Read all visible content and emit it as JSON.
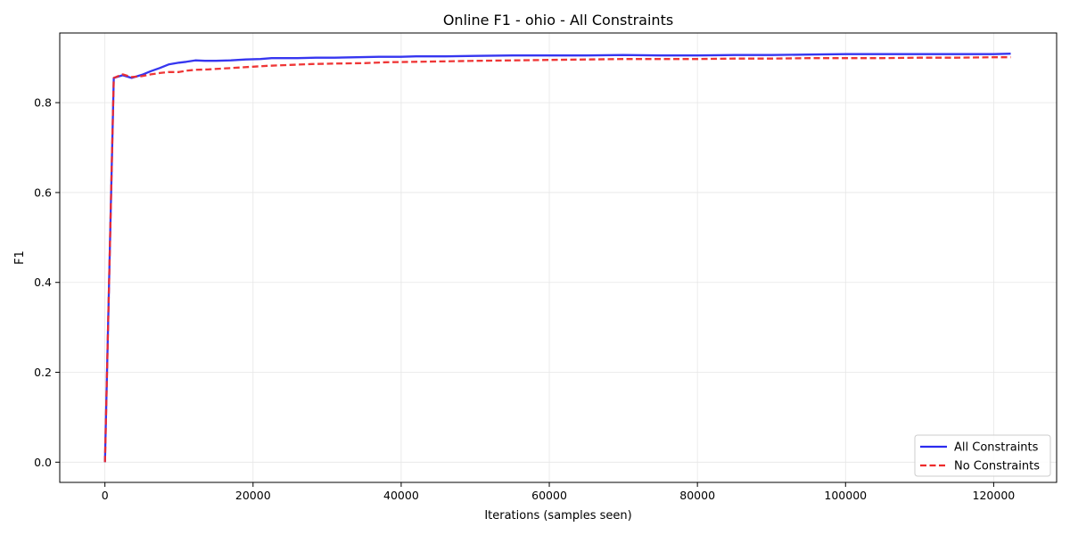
{
  "chart_data": {
    "type": "line",
    "title": "Online F1 - ohio - All Constraints",
    "xlabel": "Iterations (samples seen)",
    "ylabel": "F1",
    "xlim": [
      -6100,
      128500
    ],
    "ylim": [
      -0.045,
      0.955
    ],
    "xticks": [
      0,
      20000,
      40000,
      60000,
      80000,
      100000,
      120000
    ],
    "yticks": [
      0.0,
      0.2,
      0.4,
      0.6,
      0.8
    ],
    "xtick_labels": [
      "0",
      "20000",
      "40000",
      "60000",
      "80000",
      "100000",
      "120000"
    ],
    "ytick_labels": [
      "0.0",
      "0.2",
      "0.4",
      "0.6",
      "0.8"
    ],
    "grid": true,
    "legend_position": "bottom-right",
    "series": [
      {
        "name": "All Constraints",
        "color": "#2b2bef",
        "style": "solid",
        "x": [
          0,
          1200,
          2400,
          3600,
          5000,
          6200,
          7400,
          8600,
          10000,
          11000,
          12200,
          13500,
          15000,
          17000,
          19000,
          21000,
          22500,
          24000,
          26000,
          28500,
          31000,
          34000,
          37000,
          40000,
          42000,
          46000,
          50000,
          55000,
          60000,
          65000,
          70000,
          75000,
          80000,
          85000,
          90000,
          95000,
          100000,
          105000,
          110000,
          115000,
          120000,
          122300
        ],
        "y": [
          0.0,
          0.855,
          0.861,
          0.855,
          0.862,
          0.87,
          0.877,
          0.885,
          0.889,
          0.891,
          0.894,
          0.893,
          0.893,
          0.894,
          0.896,
          0.897,
          0.899,
          0.899,
          0.899,
          0.9,
          0.9,
          0.901,
          0.902,
          0.902,
          0.903,
          0.903,
          0.904,
          0.905,
          0.905,
          0.905,
          0.906,
          0.905,
          0.905,
          0.906,
          0.906,
          0.907,
          0.908,
          0.908,
          0.908,
          0.908,
          0.908,
          0.909
        ]
      },
      {
        "name": "No Constraints",
        "color": "#ee2b2b",
        "style": "dashed",
        "x": [
          0,
          1200,
          2400,
          3600,
          5000,
          6200,
          7400,
          8600,
          10000,
          11000,
          12200,
          14000,
          16000,
          18000,
          20000,
          22000,
          25000,
          28000,
          31000,
          35000,
          38000,
          42000,
          46000,
          50000,
          55000,
          60000,
          65000,
          70000,
          75000,
          80000,
          85000,
          90000,
          95000,
          100000,
          105000,
          110000,
          115000,
          120000,
          122300
        ],
        "y": [
          0.0,
          0.855,
          0.863,
          0.857,
          0.859,
          0.863,
          0.866,
          0.868,
          0.868,
          0.871,
          0.873,
          0.874,
          0.876,
          0.878,
          0.88,
          0.882,
          0.884,
          0.886,
          0.887,
          0.888,
          0.89,
          0.891,
          0.892,
          0.893,
          0.894,
          0.895,
          0.896,
          0.897,
          0.897,
          0.897,
          0.898,
          0.898,
          0.899,
          0.899,
          0.899,
          0.9,
          0.9,
          0.901,
          0.901
        ]
      }
    ]
  }
}
